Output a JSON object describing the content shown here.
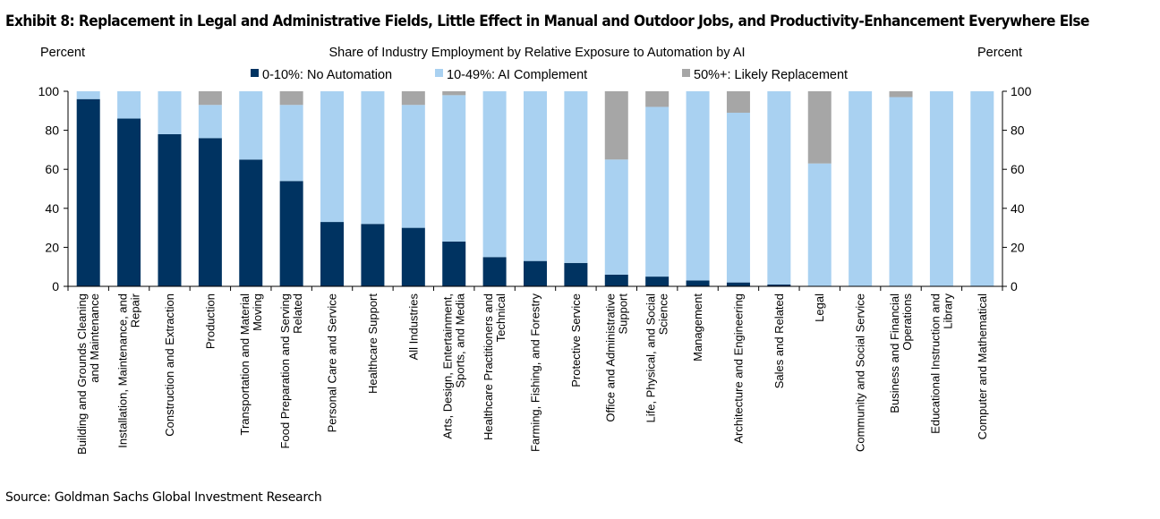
{
  "title": "Exhibit 8: Replacement in Legal and Administrative Fields, Little Effect in Manual and Outdoor Jobs, and Productivity-Enhancement Everywhere Else",
  "source": "Source: Goldman Sachs Global Investment Research",
  "colors": {
    "no_automation": "#003361",
    "ai_complement": "#a9d1f1",
    "likely_replacement": "#a6a6a6"
  },
  "chart_data": {
    "type": "bar",
    "stacked": true,
    "title": "Share of Industry Employment by Relative Exposure to Automation by AI",
    "ylabel_left": "Percent",
    "ylabel_right": "Percent",
    "ylim": [
      0,
      100
    ],
    "yticks": [
      0,
      20,
      40,
      60,
      80,
      100
    ],
    "grid": false,
    "legend_position": "top",
    "categories": [
      [
        "Building and Grounds Cleaning",
        "and Maintenance"
      ],
      [
        "Installation, Maintenance, and",
        "Repair"
      ],
      [
        "Construction and Extraction"
      ],
      [
        "Production"
      ],
      [
        "Transportation and Material",
        "Moving"
      ],
      [
        "Food Preparation and Serving",
        "Related"
      ],
      [
        "Personal Care and Service"
      ],
      [
        "Healthcare Support"
      ],
      [
        "All Industries"
      ],
      [
        "Arts, Design, Entertainment,",
        "Sports, and Media"
      ],
      [
        "Healthcare Practitioners and",
        "Technical"
      ],
      [
        "Farming, Fishing, and Forestry"
      ],
      [
        "Protective Service"
      ],
      [
        "Office and Administrative",
        "Support"
      ],
      [
        "Life, Physical, and Social",
        "Science"
      ],
      [
        "Management"
      ],
      [
        "Architecture and Engineering"
      ],
      [
        "Sales and Related"
      ],
      [
        "Legal"
      ],
      [
        "Community and Social Service"
      ],
      [
        "Business and Financial",
        "Operations"
      ],
      [
        "Educational Instruction and",
        "Library"
      ],
      [
        "Computer and Mathematical"
      ]
    ],
    "series": [
      {
        "name": "0-10%: No Automation",
        "values": [
          96,
          86,
          78,
          76,
          65,
          54,
          33,
          32,
          30,
          23,
          15,
          13,
          12,
          6,
          5,
          3,
          2,
          1,
          0,
          0,
          0,
          0,
          0
        ]
      },
      {
        "name": "10-49%: AI Complement",
        "values": [
          4,
          14,
          22,
          17,
          35,
          39,
          67,
          68,
          63,
          75,
          85,
          87,
          88,
          59,
          87,
          97,
          87,
          99,
          63,
          100,
          97,
          100,
          100
        ]
      },
      {
        "name": "50%+: Likely Replacement",
        "values": [
          0,
          0,
          0,
          7,
          0,
          7,
          0,
          0,
          7,
          2,
          0,
          0,
          0,
          35,
          8,
          0,
          11,
          0,
          37,
          0,
          3,
          0,
          0
        ]
      }
    ]
  }
}
